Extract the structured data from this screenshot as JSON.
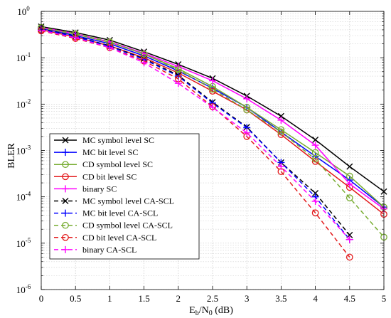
{
  "chart_data": {
    "type": "line",
    "yscale": "log",
    "xlabel_main": "E",
    "xlabel_sub1": "b",
    "xlabel_mid": "/N",
    "xlabel_sub2": "0",
    "xlabel_unit": " (dB)",
    "ylabel": "BLER",
    "xlim": [
      0,
      5
    ],
    "ylim": [
      1e-06,
      1
    ],
    "x_ticks": [
      0,
      0.5,
      1,
      1.5,
      2,
      2.5,
      3,
      3.5,
      4,
      4.5,
      5
    ],
    "x_tick_labels": [
      "0",
      "0.5",
      "1",
      "1.5",
      "2",
      "2.5",
      "3",
      "3.5",
      "4",
      "4.5",
      "5"
    ],
    "y_ticks": [
      {
        "value": 1e-06,
        "base": "10",
        "exp": "-6"
      },
      {
        "value": 1e-05,
        "base": "10",
        "exp": "-5"
      },
      {
        "value": 0.0001,
        "base": "10",
        "exp": "-4"
      },
      {
        "value": 0.001,
        "base": "10",
        "exp": "-3"
      },
      {
        "value": 0.01,
        "base": "10",
        "exp": "-2"
      },
      {
        "value": 0.1,
        "base": "10",
        "exp": "-1"
      },
      {
        "value": 1,
        "base": "10",
        "exp": "0"
      }
    ],
    "grid": true,
    "legend_position": "bottom-left",
    "series": [
      {
        "name": "MC symbol level SC",
        "color": "#000000",
        "dash": "solid",
        "marker": "x",
        "x": [
          0,
          0.5,
          1,
          1.5,
          2,
          2.5,
          3,
          3.5,
          4,
          4.5,
          5
        ],
        "y": [
          0.47,
          0.35,
          0.24,
          0.135,
          0.072,
          0.036,
          0.015,
          0.0055,
          0.0017,
          0.00045,
          0.00013
        ]
      },
      {
        "name": "MC bit level SC",
        "color": "#0000FF",
        "dash": "solid",
        "marker": "plus",
        "x": [
          0,
          0.5,
          1,
          1.5,
          2,
          2.5,
          3,
          3.5,
          4,
          4.5,
          5
        ],
        "y": [
          0.43,
          0.3,
          0.2,
          0.11,
          0.052,
          0.022,
          0.0085,
          0.0025,
          0.00075,
          0.00023,
          6e-05
        ]
      },
      {
        "name": "CD symbol level SC",
        "color": "#77AC30",
        "dash": "solid",
        "marker": "circle",
        "x": [
          0,
          0.5,
          1,
          1.5,
          2,
          2.5,
          3,
          3.5,
          4,
          4.5,
          5
        ],
        "y": [
          0.44,
          0.32,
          0.215,
          0.12,
          0.058,
          0.024,
          0.0085,
          0.0028,
          0.0009,
          0.00028,
          6e-05
        ]
      },
      {
        "name": "CD bit level SC",
        "color": "#E31A1C",
        "dash": "solid",
        "marker": "circle",
        "x": [
          0,
          0.5,
          1,
          1.5,
          2,
          2.5,
          3,
          3.5,
          4,
          4.5,
          5
        ],
        "y": [
          0.4,
          0.28,
          0.18,
          0.1,
          0.047,
          0.019,
          0.0075,
          0.0022,
          0.00058,
          0.00016,
          4.2e-05
        ]
      },
      {
        "name": "binary SC",
        "color": "#FF00FF",
        "dash": "solid",
        "marker": "plus",
        "x": [
          0,
          0.5,
          1,
          1.5,
          2,
          2.5,
          3,
          3.5,
          4,
          4.5,
          5
        ],
        "y": [
          0.45,
          0.33,
          0.22,
          0.125,
          0.065,
          0.032,
          0.013,
          0.0045,
          0.0013,
          0.00019,
          5.5e-05
        ]
      },
      {
        "name": "MC symbol level CA-SCL",
        "color": "#000000",
        "dash": "dashed",
        "marker": "x",
        "x": [
          0,
          0.5,
          1,
          1.5,
          2,
          2.5,
          3,
          3.5,
          4,
          4.5
        ],
        "y": [
          0.42,
          0.29,
          0.18,
          0.095,
          0.042,
          0.011,
          0.0032,
          0.00055,
          0.00012,
          1.5e-05
        ]
      },
      {
        "name": "MC bit level CA-SCL",
        "color": "#0000FF",
        "dash": "dashed",
        "marker": "plus",
        "x": [
          0,
          0.5,
          1,
          1.5,
          2,
          2.5,
          3,
          3.5,
          4,
          4.5
        ],
        "y": [
          0.41,
          0.285,
          0.175,
          0.092,
          0.04,
          0.0105,
          0.0031,
          0.00055,
          0.0001,
          1.2e-05
        ]
      },
      {
        "name": "CD symbol level CA-SCL",
        "color": "#77AC30",
        "dash": "dashed",
        "marker": "circle",
        "x": [
          0,
          0.5,
          1,
          1.5,
          2,
          2.5,
          3,
          3.5,
          4,
          4.5,
          5
        ],
        "y": [
          0.45,
          0.33,
          0.22,
          0.12,
          0.055,
          0.021,
          0.0075,
          0.0025,
          0.00065,
          9.5e-05,
          1.35e-05
        ]
      },
      {
        "name": "CD bit level CA-SCL",
        "color": "#E31A1C",
        "dash": "dashed",
        "marker": "circle",
        "x": [
          0,
          0.5,
          1,
          1.5,
          2,
          2.5,
          3,
          3.5,
          4,
          4.5
        ],
        "y": [
          0.38,
          0.26,
          0.165,
          0.085,
          0.035,
          0.0088,
          0.002,
          0.00035,
          4.5e-05,
          5e-06
        ]
      },
      {
        "name": "binary CA-SCL",
        "color": "#FF00FF",
        "dash": "dashed",
        "marker": "plus",
        "x": [
          0,
          0.5,
          1,
          1.5,
          2,
          2.5,
          3,
          3.5,
          4,
          4.5
        ],
        "y": [
          0.39,
          0.27,
          0.165,
          0.078,
          0.028,
          0.0085,
          0.0024,
          0.00045,
          8e-05,
          1.2e-05
        ]
      }
    ]
  }
}
